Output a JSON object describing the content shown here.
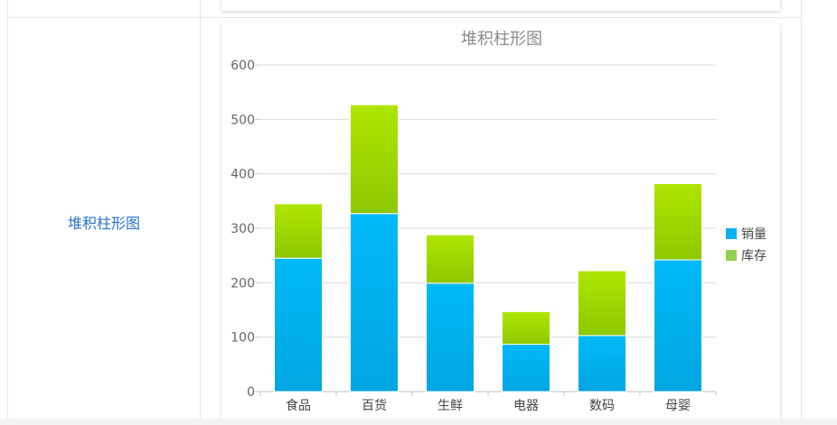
{
  "row": {
    "label": "堆积柱形图"
  },
  "chart_data": {
    "type": "bar",
    "stacked": true,
    "title": "堆积柱形图",
    "categories": [
      "食品",
      "百货",
      "生鲜",
      "电器",
      "数码",
      "母婴"
    ],
    "series": [
      {
        "name": "销量",
        "values": [
          245,
          327,
          199,
          87,
          103,
          242
        ],
        "color": "#00b0f0"
      },
      {
        "name": "库存",
        "values": [
          100,
          200,
          89,
          60,
          119,
          140
        ],
        "color": "#92d050"
      }
    ],
    "ylim": [
      0,
      600
    ],
    "yticks": [
      0,
      100,
      200,
      300,
      400,
      500,
      600
    ],
    "legend": "right",
    "grid": true
  }
}
